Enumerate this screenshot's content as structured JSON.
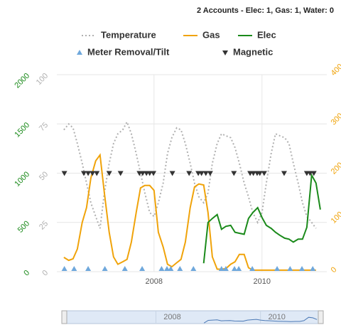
{
  "chart_data": {
    "type": "line",
    "title": "2 Accounts - Elec: 1, Gas: 1, Water: 0",
    "x": [
      2006.33,
      2006.42,
      2006.5,
      2006.58,
      2006.67,
      2006.75,
      2006.83,
      2006.92,
      2007,
      2007.08,
      2007.17,
      2007.25,
      2007.33,
      2007.42,
      2007.5,
      2007.58,
      2007.67,
      2007.75,
      2007.83,
      2007.92,
      2008,
      2008.08,
      2008.17,
      2008.25,
      2008.33,
      2008.42,
      2008.5,
      2008.58,
      2008.67,
      2008.75,
      2008.83,
      2008.92,
      2009,
      2009.08,
      2009.17,
      2009.25,
      2009.33,
      2009.42,
      2009.5,
      2009.58,
      2009.67,
      2009.75,
      2009.83,
      2009.92,
      2010,
      2010.08,
      2010.17,
      2010.25,
      2010.33,
      2010.42,
      2010.5,
      2010.58,
      2010.67,
      2010.75,
      2010.83,
      2010.92,
      2011,
      2011.08
    ],
    "xlim": [
      2006.2,
      2011.2
    ],
    "xticks": [
      2008,
      2010
    ],
    "ylim": [
      0,
      2000
    ],
    "yticks": [
      0,
      500,
      1000,
      1500,
      2000
    ],
    "y2lim": [
      0,
      100
    ],
    "y2ticks": [
      0,
      25,
      50,
      75,
      100
    ],
    "y3lim": [
      0,
      400
    ],
    "y3ticks": [
      0,
      100,
      200,
      300,
      400
    ],
    "grid": true,
    "series": [
      {
        "name": "Temperature",
        "color": "#b0b0b0",
        "axis": "y2",
        "dash": true,
        "values": [
          72,
          75,
          73,
          65,
          55,
          45,
          35,
          28,
          22,
          40,
          55,
          65,
          70,
          72,
          76,
          70,
          60,
          50,
          40,
          30,
          28,
          35,
          45,
          60,
          68,
          73,
          72,
          65,
          55,
          45,
          38,
          35,
          40,
          55,
          65,
          70,
          69,
          68,
          63,
          55,
          45,
          38,
          30,
          25,
          30,
          45,
          60,
          70,
          69,
          68,
          65,
          55,
          45,
          35,
          28,
          25,
          22,
          null
        ]
      },
      {
        "name": "Gas",
        "color": "#f0a30a",
        "axis": "y3",
        "values": [
          29,
          23,
          26,
          46,
          100,
          130,
          190,
          225,
          237,
          160,
          80,
          30,
          15,
          20,
          25,
          60,
          120,
          170,
          175,
          175,
          165,
          80,
          50,
          15,
          10,
          18,
          25,
          60,
          130,
          172,
          178,
          176,
          120,
          30,
          5,
          5,
          6,
          15,
          20,
          35,
          35,
          8,
          3,
          3,
          3,
          3,
          3,
          3,
          3,
          3,
          3,
          3,
          3,
          3,
          3,
          3,
          3,
          null
        ]
      },
      {
        "name": "Elec",
        "color": "#1a8a1a",
        "axis": "y",
        "values": [
          null,
          null,
          null,
          null,
          null,
          null,
          null,
          null,
          null,
          null,
          null,
          null,
          null,
          null,
          null,
          null,
          null,
          null,
          null,
          null,
          null,
          null,
          null,
          null,
          null,
          null,
          null,
          null,
          null,
          null,
          null,
          85,
          500,
          540,
          580,
          430,
          460,
          470,
          400,
          390,
          380,
          540,
          600,
          650,
          550,
          470,
          440,
          400,
          370,
          340,
          330,
          300,
          330,
          330,
          450,
          980,
          900,
          630
        ]
      }
    ],
    "events": [
      {
        "name": "Meter Removal/Tilt",
        "color": "#6fa8dc",
        "marker": "up",
        "axis": "y",
        "x": [
          2006.34,
          2006.52,
          2006.78,
          2007.09,
          2007.46,
          2007.78,
          2008.14,
          2008.24,
          2008.31,
          2008.48,
          2008.73,
          2009.25,
          2009.33,
          2009.49,
          2009.57,
          2009.82,
          2010.28,
          2010.52,
          2010.74,
          2010.94
        ],
        "values": [
          0,
          0,
          0,
          0,
          0,
          0,
          0,
          0,
          0,
          0,
          0,
          0,
          0,
          0,
          0,
          0,
          0,
          0,
          0,
          0
        ]
      },
      {
        "name": "Magnetic",
        "color": "#333333",
        "marker": "down",
        "axis": "y",
        "x": [
          2006.34,
          2006.7,
          2006.78,
          2006.86,
          2006.94,
          2007.17,
          2007.38,
          2007.73,
          2007.79,
          2007.86,
          2007.92,
          2007.99,
          2008.34,
          2008.65,
          2008.82,
          2008.88,
          2008.96,
          2009.04,
          2009.48,
          2009.78,
          2009.84,
          2009.91,
          2009.96,
          2010.04,
          2010.41,
          2010.83,
          2010.89,
          2010.96
        ],
        "values": [
          1000,
          1000,
          1000,
          1000,
          1000,
          1000,
          1000,
          1000,
          1000,
          1000,
          1000,
          1000,
          1000,
          1000,
          1000,
          1000,
          1000,
          1000,
          1000,
          1000,
          1000,
          1000,
          1000,
          1000,
          1000,
          1000,
          1000,
          1000
        ]
      }
    ]
  }
}
